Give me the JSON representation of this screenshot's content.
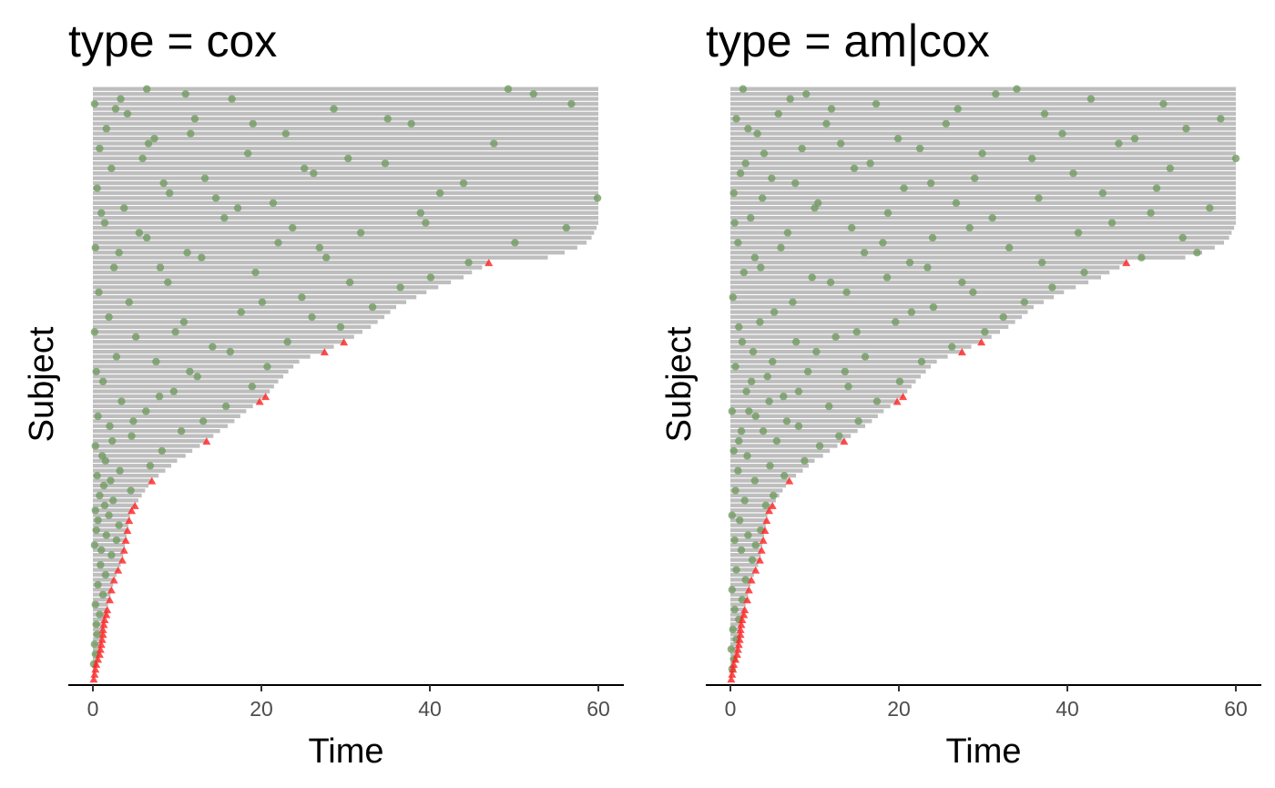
{
  "chart_data": {
    "type": "swimmer",
    "xlabel": "Time",
    "ylabel": "Subject",
    "xlim": [
      0,
      60
    ],
    "xticks": [
      0,
      20,
      40,
      60
    ],
    "xtick_labels": [
      "0",
      "20",
      "40",
      "60"
    ],
    "colors": {
      "bar": "#bebebe",
      "event_point": "#6f9a5f",
      "terminal_event": "#ff2020",
      "axis": "#000000"
    },
    "subject_end_times": [
      0.1,
      0.2,
      0.3,
      0.4,
      0.6,
      0.8,
      0.9,
      1.0,
      1.1,
      1.2,
      1.2,
      1.3,
      1.4,
      1.6,
      1.7,
      1.8,
      2.0,
      2.1,
      2.2,
      2.4,
      2.5,
      2.8,
      3.0,
      3.3,
      3.5,
      3.6,
      3.7,
      3.8,
      3.9,
      4.0,
      4.1,
      4.2,
      4.3,
      4.4,
      4.6,
      5.0,
      5.4,
      5.8,
      6.2,
      6.6,
      7.0,
      7.8,
      8.6,
      9.3,
      10.0,
      11.0,
      11.8,
      12.7,
      13.5,
      14.3,
      15.1,
      16.0,
      16.8,
      17.5,
      18.2,
      19.0,
      19.8,
      20.5,
      21.0,
      21.5,
      22.0,
      22.6,
      23.2,
      23.8,
      24.5,
      25.8,
      27.5,
      28.6,
      29.8,
      31.0,
      32.0,
      33.0,
      33.8,
      34.6,
      35.3,
      36.0,
      37.2,
      38.4,
      39.6,
      41.0,
      42.5,
      44.0,
      45.0,
      46.2,
      47.0,
      54.0,
      56.0,
      57.5,
      58.6,
      59.2,
      59.5,
      59.8,
      60,
      60,
      60,
      60,
      60,
      60,
      60,
      60,
      60,
      60,
      60,
      60,
      60,
      60,
      60,
      60,
      60,
      60,
      60,
      60,
      60,
      60,
      60,
      60,
      60,
      60,
      60,
      60
    ],
    "terminal_event_subjects": [
      0,
      1,
      2,
      3,
      4,
      5,
      6,
      7,
      8,
      9,
      10,
      11,
      12,
      13,
      14,
      16,
      18,
      20,
      22,
      24,
      26,
      28,
      30,
      32,
      34,
      35,
      40,
      48,
      56,
      57,
      66,
      68,
      84
    ],
    "panels": [
      {
        "title": "type = cox",
        "events": [
          [
            3,
            0.1
          ],
          [
            5,
            0.3
          ],
          [
            7,
            0.2
          ],
          [
            9,
            0.5
          ],
          [
            11,
            0.4
          ],
          [
            13,
            0.8
          ],
          [
            15,
            0.3
          ],
          [
            17,
            1.2
          ],
          [
            19,
            0.6
          ],
          [
            21,
            1.5
          ],
          [
            23,
            0.9
          ],
          [
            25,
            2.2
          ],
          [
            26,
            1.0
          ],
          [
            27,
            0.2
          ],
          [
            28,
            2.8
          ],
          [
            29,
            1.6
          ],
          [
            30,
            0.4
          ],
          [
            31,
            3.1
          ],
          [
            33,
            1.9
          ],
          [
            34,
            0.3
          ],
          [
            36,
            2.4
          ],
          [
            37,
            0.8
          ],
          [
            38,
            4.5
          ],
          [
            39,
            1.3
          ],
          [
            41,
            0.5
          ],
          [
            42,
            3.2
          ],
          [
            43,
            6.8
          ],
          [
            45,
            1.1
          ],
          [
            46,
            8.2
          ],
          [
            47,
            0.3
          ],
          [
            49,
            4.6
          ],
          [
            50,
            10.5
          ],
          [
            51,
            2.0
          ],
          [
            52,
            13.1
          ],
          [
            53,
            0.6
          ],
          [
            54,
            6.3
          ],
          [
            55,
            15.8
          ],
          [
            56,
            3.4
          ],
          [
            58,
            9.6
          ],
          [
            59,
            18.9
          ],
          [
            60,
            1.2
          ],
          [
            61,
            12.4
          ],
          [
            62,
            0.4
          ],
          [
            63,
            20.7
          ],
          [
            64,
            7.5
          ],
          [
            65,
            2.8
          ],
          [
            67,
            14.2
          ],
          [
            68,
            23.1
          ],
          [
            69,
            5.1
          ],
          [
            70,
            0.2
          ],
          [
            71,
            29.4
          ],
          [
            72,
            10.8
          ],
          [
            73,
            1.9
          ],
          [
            74,
            17.6
          ],
          [
            75,
            33.2
          ],
          [
            76,
            4.3
          ],
          [
            77,
            24.8
          ],
          [
            78,
            0.7
          ],
          [
            79,
            36.5
          ],
          [
            80,
            8.9
          ],
          [
            81,
            40.1
          ],
          [
            82,
            19.3
          ],
          [
            83,
            2.5
          ],
          [
            84,
            44.6
          ],
          [
            85,
            27.7
          ],
          [
            86,
            11.2
          ],
          [
            87,
            0.3
          ],
          [
            88,
            50.1
          ],
          [
            89,
            6.4
          ],
          [
            90,
            31.8
          ],
          [
            91,
            56.2
          ],
          [
            92,
            1.4
          ],
          [
            93,
            15.6
          ],
          [
            94,
            38.9
          ],
          [
            95,
            3.7
          ],
          [
            96,
            21.4
          ],
          [
            97,
            59.9
          ],
          [
            98,
            9.1
          ],
          [
            99,
            0.5
          ],
          [
            100,
            44.0
          ],
          [
            101,
            13.3
          ],
          [
            102,
            26.2
          ],
          [
            103,
            2.2
          ],
          [
            104,
            34.7
          ],
          [
            105,
            5.9
          ],
          [
            106,
            18.4
          ],
          [
            107,
            0.8
          ],
          [
            108,
            47.6
          ],
          [
            109,
            7.3
          ],
          [
            110,
            22.9
          ],
          [
            111,
            1.6
          ],
          [
            112,
            37.8
          ],
          [
            113,
            12.1
          ],
          [
            114,
            4.1
          ],
          [
            115,
            28.6
          ],
          [
            116,
            0.2
          ],
          [
            117,
            16.5
          ],
          [
            118,
            52.3
          ],
          [
            119,
            49.3
          ],
          [
            86,
            3.1
          ],
          [
            90,
            5.5
          ],
          [
            95,
            17.2
          ],
          [
            100,
            8.4
          ],
          [
            105,
            30.3
          ],
          [
            110,
            11.6
          ],
          [
            115,
            2.7
          ],
          [
            88,
            22.0
          ],
          [
            92,
            39.5
          ],
          [
            98,
            41.2
          ],
          [
            103,
            25.1
          ],
          [
            108,
            6.6
          ],
          [
            113,
            35.0
          ],
          [
            117,
            3.3
          ],
          [
            119,
            6.4
          ],
          [
            118,
            11.0
          ],
          [
            116,
            56.8
          ],
          [
            112,
            19.0
          ],
          [
            97,
            14.6
          ],
          [
            94,
            1.0
          ],
          [
            91,
            23.7
          ],
          [
            87,
            26.9
          ],
          [
            85,
            12.9
          ],
          [
            83,
            8.0
          ],
          [
            80,
            30.5
          ],
          [
            76,
            20.1
          ],
          [
            73,
            26.0
          ],
          [
            70,
            9.8
          ],
          [
            66,
            16.3
          ],
          [
            62,
            11.5
          ],
          [
            57,
            7.9
          ],
          [
            52,
            4.8
          ],
          [
            48,
            2.3
          ],
          [
            44,
            1.5
          ],
          [
            40,
            2.1
          ],
          [
            35,
            1.4
          ],
          [
            32,
            0.6
          ]
        ]
      },
      {
        "title": "type = am|cox",
        "events": [
          [
            2,
            0.2
          ],
          [
            4,
            0.4
          ],
          [
            6,
            0.1
          ],
          [
            8,
            0.7
          ],
          [
            10,
            0.3
          ],
          [
            12,
            1.0
          ],
          [
            14,
            0.5
          ],
          [
            16,
            1.4
          ],
          [
            18,
            0.2
          ],
          [
            20,
            1.8
          ],
          [
            22,
            0.7
          ],
          [
            24,
            2.6
          ],
          [
            26,
            1.3
          ],
          [
            27,
            3.0
          ],
          [
            28,
            0.5
          ],
          [
            29,
            2.1
          ],
          [
            30,
            3.6
          ],
          [
            32,
            1.1
          ],
          [
            33,
            0.2
          ],
          [
            35,
            4.2
          ],
          [
            36,
            1.7
          ],
          [
            37,
            5.1
          ],
          [
            38,
            0.6
          ],
          [
            40,
            2.9
          ],
          [
            41,
            6.4
          ],
          [
            42,
            0.9
          ],
          [
            43,
            4.7
          ],
          [
            44,
            8.8
          ],
          [
            45,
            2.0
          ],
          [
            46,
            0.4
          ],
          [
            47,
            10.6
          ],
          [
            48,
            5.5
          ],
          [
            49,
            12.9
          ],
          [
            50,
            1.3
          ],
          [
            51,
            8.1
          ],
          [
            52,
            15.2
          ],
          [
            53,
            3.0
          ],
          [
            54,
            0.2
          ],
          [
            55,
            11.7
          ],
          [
            56,
            17.4
          ],
          [
            57,
            6.3
          ],
          [
            58,
            1.9
          ],
          [
            59,
            14.0
          ],
          [
            60,
            20.1
          ],
          [
            61,
            4.4
          ],
          [
            62,
            9.2
          ],
          [
            63,
            0.6
          ],
          [
            64,
            22.7
          ],
          [
            65,
            16.0
          ],
          [
            66,
            2.7
          ],
          [
            67,
            26.3
          ],
          [
            68,
            7.8
          ],
          [
            69,
            12.5
          ],
          [
            70,
            30.2
          ],
          [
            71,
            1.0
          ],
          [
            72,
            19.6
          ],
          [
            73,
            32.4
          ],
          [
            74,
            5.2
          ],
          [
            75,
            24.1
          ],
          [
            76,
            34.9
          ],
          [
            77,
            0.3
          ],
          [
            78,
            13.8
          ],
          [
            79,
            38.2
          ],
          [
            80,
            27.5
          ],
          [
            81,
            9.7
          ],
          [
            82,
            42.0
          ],
          [
            83,
            3.6
          ],
          [
            84,
            21.3
          ],
          [
            85,
            48.8
          ],
          [
            86,
            15.9
          ],
          [
            87,
            33.1
          ],
          [
            88,
            0.9
          ],
          [
            89,
            53.7
          ],
          [
            90,
            6.8
          ],
          [
            91,
            28.4
          ],
          [
            92,
            45.3
          ],
          [
            93,
            2.4
          ],
          [
            94,
            18.7
          ],
          [
            95,
            56.9
          ],
          [
            96,
            10.4
          ],
          [
            97,
            36.6
          ],
          [
            98,
            0.4
          ],
          [
            99,
            50.6
          ],
          [
            100,
            23.8
          ],
          [
            101,
            4.9
          ],
          [
            102,
            40.7
          ],
          [
            103,
            14.7
          ],
          [
            104,
            1.8
          ],
          [
            105,
            60.0
          ],
          [
            106,
            29.9
          ],
          [
            107,
            8.5
          ],
          [
            108,
            46.1
          ],
          [
            109,
            19.9
          ],
          [
            110,
            3.2
          ],
          [
            111,
            54.1
          ],
          [
            112,
            25.6
          ],
          [
            113,
            0.7
          ],
          [
            114,
            37.3
          ],
          [
            115,
            12.0
          ],
          [
            116,
            51.4
          ],
          [
            117,
            7.1
          ],
          [
            118,
            31.5
          ],
          [
            119,
            34.0
          ],
          [
            119,
            1.5
          ],
          [
            118,
            9.0
          ],
          [
            117,
            42.8
          ],
          [
            116,
            17.3
          ],
          [
            115,
            27.0
          ],
          [
            114,
            5.7
          ],
          [
            113,
            58.2
          ],
          [
            112,
            11.4
          ],
          [
            111,
            2.1
          ],
          [
            110,
            39.4
          ],
          [
            109,
            48.0
          ],
          [
            108,
            13.1
          ],
          [
            107,
            22.5
          ],
          [
            106,
            4.0
          ],
          [
            105,
            35.8
          ],
          [
            104,
            16.6
          ],
          [
            103,
            52.2
          ],
          [
            102,
            1.2
          ],
          [
            101,
            29.0
          ],
          [
            100,
            7.7
          ],
          [
            99,
            20.6
          ],
          [
            98,
            44.2
          ],
          [
            97,
            3.8
          ],
          [
            96,
            26.8
          ],
          [
            95,
            10.0
          ],
          [
            94,
            49.9
          ],
          [
            93,
            31.1
          ],
          [
            92,
            0.5
          ],
          [
            91,
            14.4
          ],
          [
            90,
            41.3
          ],
          [
            89,
            24.0
          ],
          [
            88,
            18.1
          ],
          [
            87,
            6.0
          ],
          [
            86,
            55.4
          ],
          [
            85,
            2.9
          ],
          [
            84,
            37.0
          ],
          [
            83,
            23.4
          ],
          [
            82,
            1.6
          ],
          [
            81,
            18.6
          ],
          [
            80,
            11.9
          ],
          [
            78,
            28.8
          ],
          [
            76,
            7.4
          ],
          [
            74,
            21.5
          ],
          [
            72,
            3.5
          ],
          [
            70,
            15.0
          ],
          [
            68,
            1.4
          ],
          [
            66,
            10.2
          ],
          [
            64,
            5.0
          ],
          [
            62,
            13.6
          ],
          [
            60,
            2.5
          ],
          [
            58,
            8.1
          ],
          [
            56,
            4.6
          ],
          [
            54,
            2.2
          ],
          [
            52,
            6.7
          ],
          [
            50,
            3.9
          ],
          [
            48,
            1.0
          ]
        ]
      }
    ]
  }
}
